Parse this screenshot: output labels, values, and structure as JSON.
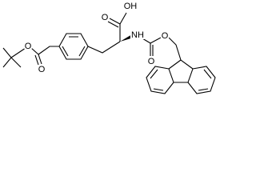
{
  "atom_labels": [
    "O",
    "O",
    "O",
    "OH",
    "NH",
    "O",
    "O"
  ]
}
